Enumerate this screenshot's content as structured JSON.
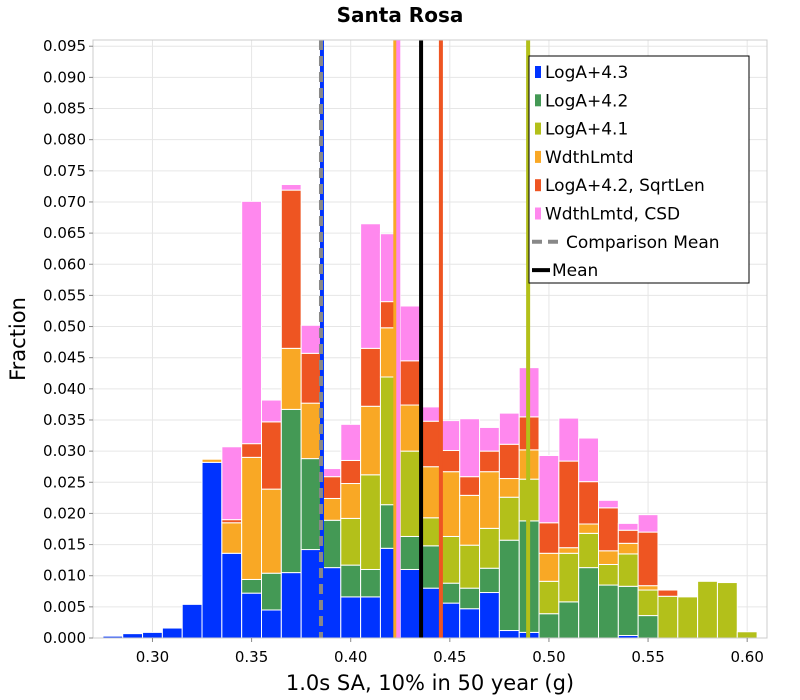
{
  "chart_data": {
    "type": "bar",
    "title": "Santa Rosa",
    "xlabel": "1.0s SA, 10% in 50 year (g)",
    "ylabel": "Fraction",
    "xlim": [
      0.27,
      0.61
    ],
    "ylim": [
      0,
      0.096
    ],
    "x_ticks": [
      "0.30",
      "0.35",
      "0.40",
      "0.45",
      "0.50",
      "0.55",
      "0.60"
    ],
    "y_ticks": [
      "0.000",
      "0.005",
      "0.010",
      "0.015",
      "0.020",
      "0.025",
      "0.030",
      "0.035",
      "0.040",
      "0.045",
      "0.050",
      "0.055",
      "0.060",
      "0.065",
      "0.070",
      "0.075",
      "0.080",
      "0.085",
      "0.090",
      "0.095"
    ],
    "grid": true,
    "legend_position": "top-right",
    "bin_width": 0.01,
    "stacked": true,
    "bins": [
      {
        "x": 0.28,
        "values": [
          0.0003,
          0,
          0,
          0,
          0,
          0
        ]
      },
      {
        "x": 0.29,
        "values": [
          0.0007,
          0,
          0,
          0,
          0,
          0
        ]
      },
      {
        "x": 0.3,
        "values": [
          0.0009,
          0,
          0,
          0,
          0,
          0
        ]
      },
      {
        "x": 0.31,
        "values": [
          0.0016,
          0,
          0,
          0,
          0,
          0
        ]
      },
      {
        "x": 0.32,
        "values": [
          0.0054,
          0,
          0,
          0,
          0,
          0
        ]
      },
      {
        "x": 0.33,
        "values": [
          0.0282,
          0,
          0,
          0.0005,
          0,
          0
        ]
      },
      {
        "x": 0.34,
        "values": [
          0.0136,
          0,
          0,
          0.0049,
          0.0005,
          0.0117
        ]
      },
      {
        "x": 0.35,
        "values": [
          0.0072,
          0.0022,
          0,
          0.0196,
          0.0022,
          0.0389
        ]
      },
      {
        "x": 0.36,
        "values": [
          0.0045,
          0.0059,
          0,
          0.0135,
          0.0108,
          0.0035
        ]
      },
      {
        "x": 0.37,
        "values": [
          0.0105,
          0.0262,
          0,
          0.0098,
          0.0254,
          0.0009
        ]
      },
      {
        "x": 0.38,
        "values": [
          0.0142,
          0.0146,
          0,
          0.0089,
          0.008,
          0.0045
        ]
      },
      {
        "x": 0.39,
        "values": [
          0.0113,
          0.0076,
          0,
          0.0035,
          0.0035,
          0.0013
        ]
      },
      {
        "x": 0.4,
        "values": [
          0.0066,
          0.0051,
          0.0075,
          0.0056,
          0.0037,
          0.0058
        ]
      },
      {
        "x": 0.41,
        "values": [
          0.0066,
          0.0044,
          0.0152,
          0.011,
          0.0093,
          0.02
        ]
      },
      {
        "x": 0.42,
        "values": [
          0.0144,
          0.007,
          0.0205,
          0.0079,
          0.0042,
          0.0109
        ]
      },
      {
        "x": 0.43,
        "values": [
          0.011,
          0.0053,
          0.0137,
          0.0074,
          0.0071,
          0.0088
        ]
      },
      {
        "x": 0.44,
        "values": [
          0.008,
          0.0068,
          0.0045,
          0.0082,
          0.0073,
          0.0023
        ]
      },
      {
        "x": 0.45,
        "values": [
          0.0056,
          0.0032,
          0.0075,
          0.0104,
          0.0034,
          0.0048
        ]
      },
      {
        "x": 0.46,
        "values": [
          0.0047,
          0.0033,
          0.0069,
          0.008,
          0.003,
          0.0093
        ]
      },
      {
        "x": 0.47,
        "values": [
          0.0073,
          0.0039,
          0.0064,
          0.0091,
          0.0033,
          0.0038
        ]
      },
      {
        "x": 0.48,
        "values": [
          0.0012,
          0.0145,
          0.0069,
          0.003,
          0.0055,
          0.005
        ]
      },
      {
        "x": 0.49,
        "values": [
          0.0009,
          0.0179,
          0.0067,
          0.0047,
          0.0053,
          0.0079
        ]
      },
      {
        "x": 0.5,
        "values": [
          0,
          0.0039,
          0.0052,
          0.0045,
          0.0049,
          0.0108
        ]
      },
      {
        "x": 0.51,
        "values": [
          0,
          0.0058,
          0.0078,
          0.0009,
          0.0139,
          0.0069
        ]
      },
      {
        "x": 0.52,
        "values": [
          0,
          0.0113,
          0.0055,
          0.0015,
          0.0068,
          0.007
        ]
      },
      {
        "x": 0.53,
        "values": [
          0,
          0.0085,
          0.0033,
          0.0022,
          0.0069,
          0.0012
        ]
      },
      {
        "x": 0.54,
        "values": [
          0.0004,
          0.0079,
          0.0052,
          0.0017,
          0.0021,
          0.0011
        ]
      },
      {
        "x": 0.55,
        "values": [
          0,
          0.0036,
          0.0041,
          0.0007,
          0.0086,
          0.0028
        ]
      },
      {
        "x": 0.56,
        "values": [
          0,
          0,
          0.0067,
          0,
          0.001,
          0
        ]
      },
      {
        "x": 0.57,
        "values": [
          0,
          0,
          0.0066,
          0,
          0,
          0
        ]
      },
      {
        "x": 0.58,
        "values": [
          0,
          0,
          0.0091,
          0,
          0,
          0
        ]
      },
      {
        "x": 0.59,
        "values": [
          0,
          0,
          0.0089,
          0,
          0,
          0
        ]
      },
      {
        "x": 0.6,
        "values": [
          0,
          0,
          0.001,
          0,
          0,
          0
        ]
      }
    ],
    "series": [
      {
        "name": "LogA+4.3",
        "color": "#0033ff",
        "mean": 0.3855
      },
      {
        "name": "LogA+4.2",
        "color": "#449955",
        "mean": 0.4895
      },
      {
        "name": "LogA+4.1",
        "color": "#b3c01a",
        "mean": 0.4895
      },
      {
        "name": "WdthLmtd",
        "color": "#f9a825",
        "mean": 0.4225
      },
      {
        "name": "LogA+4.2, SqrtLen",
        "color": "#ee5522",
        "mean": 0.4455
      },
      {
        "name": "WdthLmtd, CSD",
        "color": "#ff88ee",
        "mean": 0.424
      }
    ],
    "mean_line_series_order": [
      "LogA+4.3",
      "WdthLmtd",
      "WdthLmtd, CSD",
      "LogA+4.2, SqrtLen",
      "LogA+4.1"
    ],
    "comparison_mean": {
      "name": "Comparison Mean",
      "color": "#888888",
      "style": "dashed",
      "x": 0.385
    },
    "overall_mean": {
      "name": "Mean",
      "color": "#000000",
      "x": 0.4355
    }
  }
}
